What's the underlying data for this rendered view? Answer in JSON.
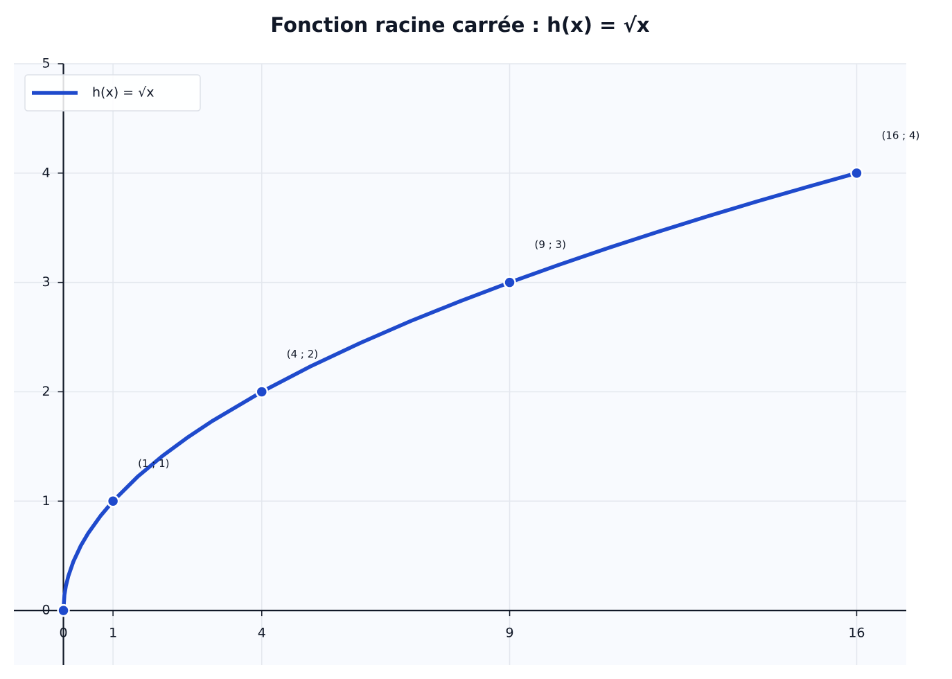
{
  "chart_data": {
    "type": "line",
    "title": "Fonction racine carrée : h(x) = √x",
    "xlim": [
      -1,
      17
    ],
    "ylim": [
      -0.5,
      5
    ],
    "xticks": [
      0,
      1,
      4,
      9,
      16
    ],
    "yticks": [
      0,
      1,
      2,
      3,
      4,
      5
    ],
    "grid": true,
    "legend": "upper left",
    "series": [
      {
        "name": "h(x) = √x",
        "color": "#1f4acc",
        "x": [
          0,
          0.02,
          0.05,
          0.1,
          0.2,
          0.35,
          0.5,
          0.75,
          1,
          1.5,
          2,
          2.5,
          3,
          4,
          5,
          6,
          7,
          8,
          9,
          10,
          11,
          12,
          13,
          14,
          15,
          16
        ],
        "values": [
          0,
          0.141,
          0.224,
          0.316,
          0.447,
          0.592,
          0.707,
          0.866,
          1,
          1.225,
          1.414,
          1.581,
          1.732,
          2,
          2.236,
          2.449,
          2.646,
          2.828,
          3,
          3.162,
          3.317,
          3.464,
          3.606,
          3.742,
          3.873,
          4
        ]
      }
    ],
    "points": {
      "x": [
        0,
        1,
        4,
        9,
        16
      ],
      "values": [
        0,
        1,
        2,
        3,
        4
      ],
      "color": "#1f4acc"
    },
    "annotations": [
      {
        "text": "(1 ; 1)",
        "x": 1,
        "y": 1
      },
      {
        "text": "(4 ; 2)",
        "x": 4,
        "y": 2
      },
      {
        "text": "(9 ; 3)",
        "x": 9,
        "y": 3
      },
      {
        "text": "(16 ; 4)",
        "x": 16,
        "y": 4
      }
    ]
  }
}
